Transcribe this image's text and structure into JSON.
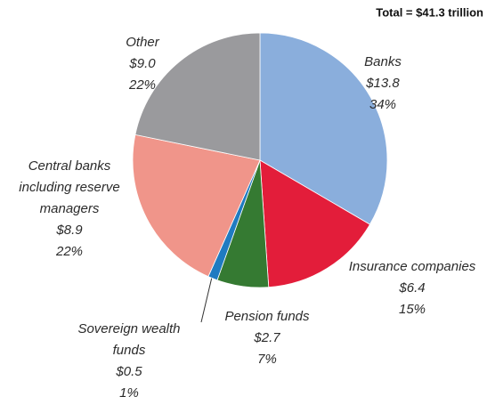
{
  "chart_data": {
    "type": "pie",
    "title": "Total = $41.3 trillion",
    "categories": [
      "Banks",
      "Insurance companies",
      "Pension funds",
      "Sovereign wealth funds",
      "Central banks including reserve managers",
      "Other"
    ],
    "values": [
      13.8,
      6.4,
      2.7,
      0.5,
      8.9,
      9.0
    ],
    "value_labels": [
      "$13.8",
      "$6.4",
      "$2.7",
      "$0.5",
      "$8.9",
      "$9.0"
    ],
    "shares": [
      34,
      15,
      7,
      1,
      22,
      22
    ],
    "share_labels": [
      "34%",
      "15%",
      "7%",
      "1%",
      "22%",
      "22%"
    ],
    "colors": [
      "#8aaedc",
      "#e31d3a",
      "#357a32",
      "#1f7bc1",
      "#f0958a",
      "#9a9a9d"
    ]
  }
}
